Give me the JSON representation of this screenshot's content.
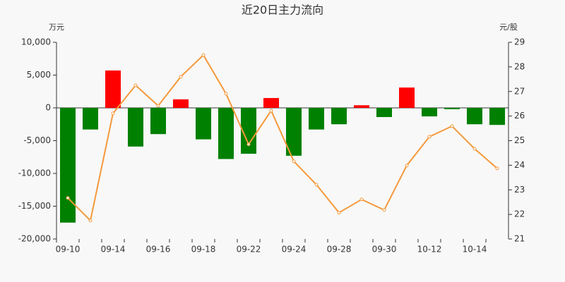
{
  "chart_data": {
    "type": "bar",
    "title": "近20日主力流向",
    "y_label": "万元",
    "y2_label": "元/股",
    "categories": [
      "09-10",
      null,
      "09-14",
      null,
      "09-16",
      null,
      "09-18",
      null,
      "09-22",
      null,
      "09-24",
      null,
      "09-28",
      null,
      "09-30",
      null,
      "10-12",
      null,
      "10-14",
      null
    ],
    "series": [
      {
        "type": "bar",
        "positive_color": "#ff0000",
        "negative_color": "#008000",
        "values": [
          -17500,
          -3300,
          5700,
          -5900,
          -4000,
          1300,
          -4800,
          -7800,
          -7000,
          1500,
          -7300,
          -3300,
          -2500,
          400,
          -1400,
          3100,
          -1300,
          -200,
          -2500,
          -2600
        ]
      },
      {
        "type": "line",
        "axis": "y2",
        "color": "#f5993c",
        "values": [
          22.67,
          21.75,
          26.11,
          27.25,
          26.42,
          27.6,
          28.48,
          26.91,
          24.85,
          26.22,
          24.16,
          23.21,
          22.07,
          22.61,
          22.18,
          23.99,
          25.16,
          25.59,
          24.67,
          23.87
        ]
      }
    ],
    "ylim": [
      -20000,
      10000
    ],
    "yticks": [
      {
        "value": -20000,
        "label": "-20,000"
      },
      {
        "value": -15000,
        "label": "-15,000"
      },
      {
        "value": -10000,
        "label": "-10,000"
      },
      {
        "value": -5000,
        "label": "-5,000"
      },
      0,
      {
        "value": 5000,
        "label": "5,000"
      },
      {
        "value": 10000,
        "label": "10,000"
      }
    ],
    "y2lim": [
      21,
      29
    ],
    "y2ticks": [
      21,
      22,
      23,
      24,
      25,
      26,
      27,
      28,
      29
    ]
  }
}
